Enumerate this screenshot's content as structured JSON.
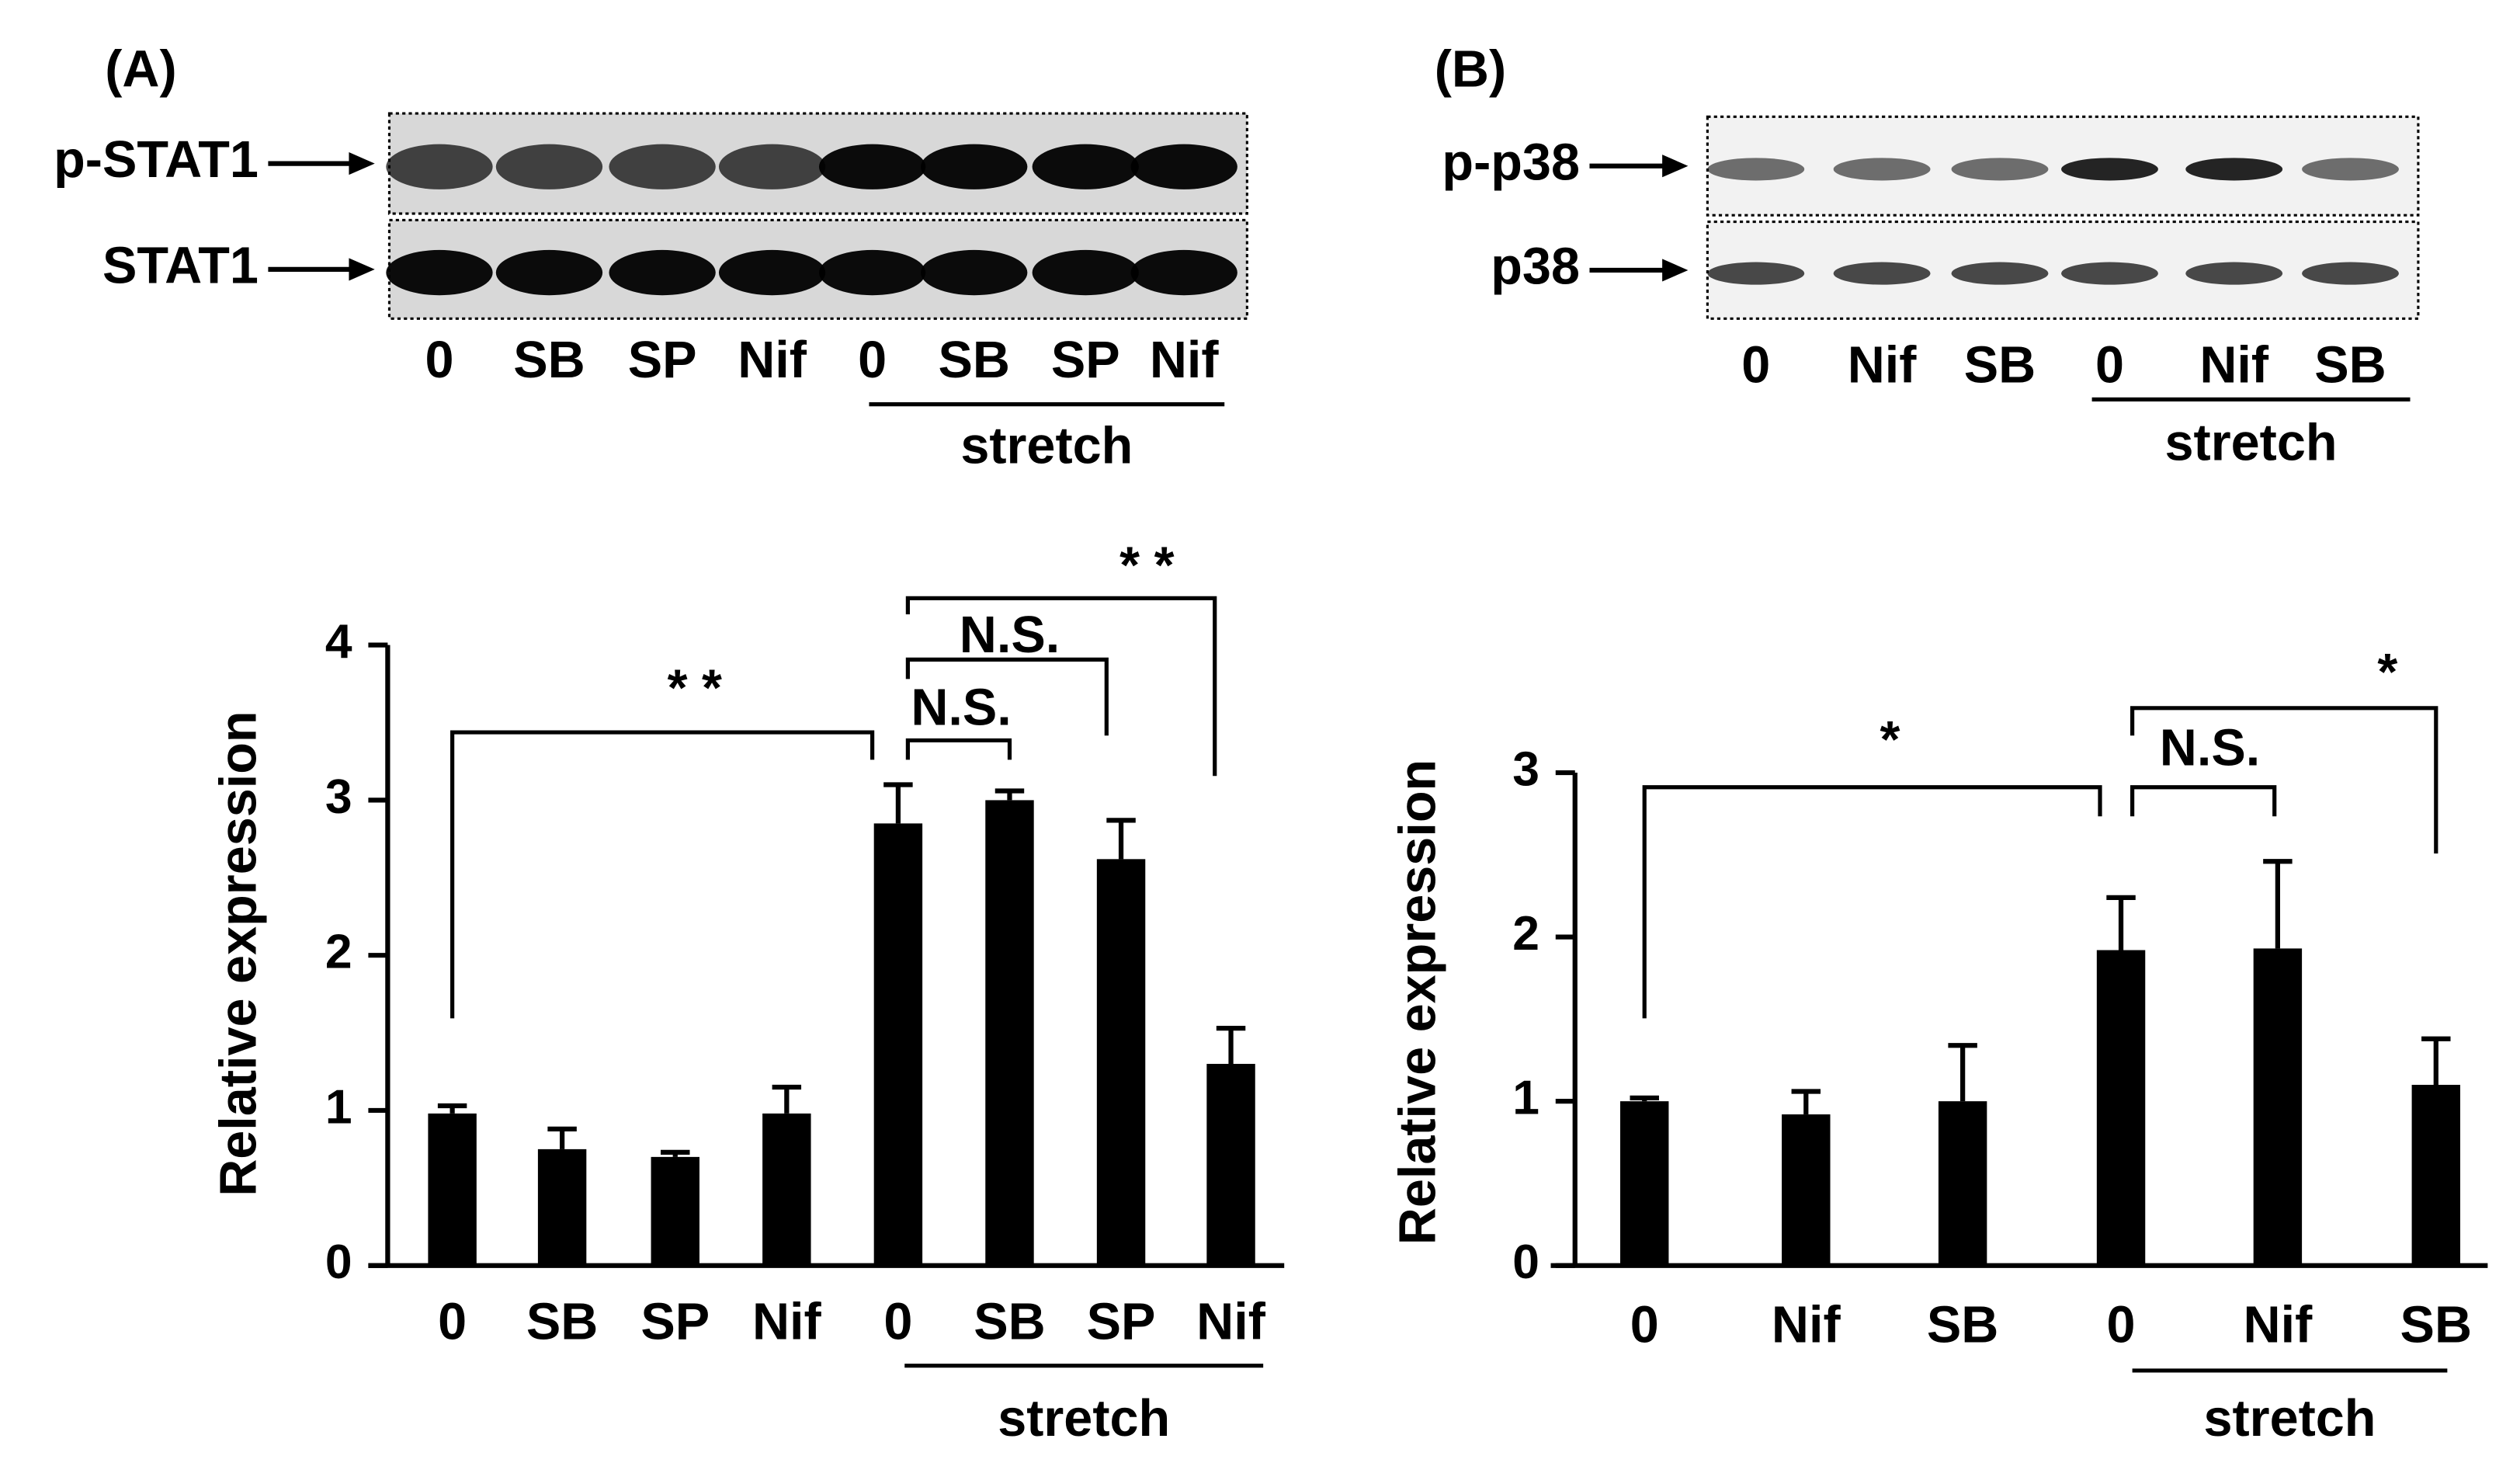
{
  "blots": [
    {
      "panel": "(A)",
      "rows": [
        "p-STAT1",
        "STAT1"
      ],
      "lanes": [
        "0",
        "SB",
        "SP",
        "Nif",
        "0",
        "SB",
        "SP",
        "Nif"
      ],
      "group_label": "stretch"
    },
    {
      "panel": "(B)",
      "rows": [
        "p-p38",
        "p38"
      ],
      "lanes": [
        "0",
        "Nif",
        "SB",
        "0",
        "Nif",
        "SB"
      ],
      "group_label": "stretch"
    }
  ],
  "chart_data": [
    {
      "type": "bar",
      "ylabel": "Relative expression",
      "categories": [
        "0",
        "SB",
        "SP",
        "Nif",
        "0",
        "SB",
        "SP",
        "Nif"
      ],
      "values": [
        0.98,
        0.75,
        0.7,
        0.98,
        2.85,
        3.0,
        2.62,
        1.3
      ],
      "errors": [
        0.05,
        0.13,
        0.03,
        0.17,
        0.25,
        0.06,
        0.25,
        0.23
      ],
      "color": "#000000",
      "ylim": [
        0,
        4
      ],
      "yticks": [
        0,
        1,
        2,
        3,
        4
      ],
      "group_label": "stretch",
      "annotations": [
        "* *",
        "N.S.",
        "N.S.",
        "* *"
      ]
    },
    {
      "type": "bar",
      "ylabel": "Relative expression",
      "categories": [
        "0",
        "Nif",
        "SB",
        "0",
        "Nif",
        "SB"
      ],
      "values": [
        1.0,
        0.92,
        1.0,
        1.92,
        1.93,
        1.1
      ],
      "errors": [
        0.02,
        0.14,
        0.34,
        0.32,
        0.53,
        0.28
      ],
      "color": "#000000",
      "ylim": [
        0,
        3
      ],
      "yticks": [
        0,
        1,
        2,
        3
      ],
      "group_label": "stretch",
      "annotations": [
        "*",
        "N.S.",
        "*"
      ]
    }
  ]
}
